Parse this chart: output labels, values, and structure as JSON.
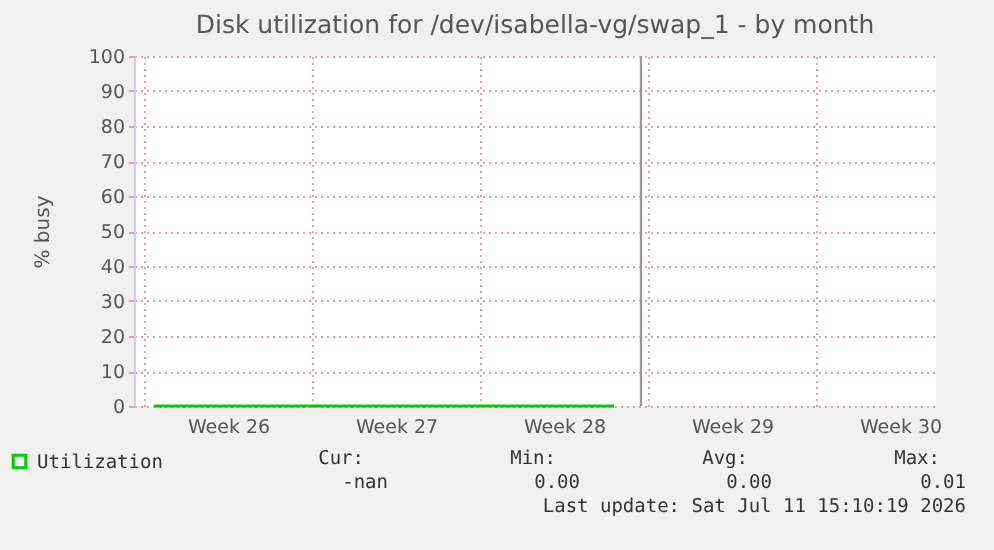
{
  "chart_data": {
    "type": "line",
    "title": "Disk utilization for /dev/isabella-vg/swap_1 - by month",
    "ylabel": "% busy",
    "xlim": [
      "2026-06-21T14:00",
      "2026-07-25"
    ],
    "xticks": [
      {
        "value": "2026-06-22",
        "label": null
      },
      {
        "value": "2026-06-25T12:00",
        "label": "Week 26"
      },
      {
        "value": "2026-06-29",
        "label": null
      },
      {
        "value": "2026-07-02T12:00",
        "label": "Week 27"
      },
      {
        "value": "2026-07-06",
        "label": null
      },
      {
        "value": "2026-07-09T12:00",
        "label": "Week 28"
      },
      {
        "value": "2026-07-13",
        "label": null
      },
      {
        "value": "2026-07-16T12:00",
        "label": "Week 29"
      },
      {
        "value": "2026-07-20",
        "label": null
      },
      {
        "value": "2026-07-23T12:00",
        "label": "Week 30"
      }
    ],
    "ylim": [
      0,
      100
    ],
    "yticks": [
      0,
      10,
      20,
      30,
      40,
      50,
      60,
      70,
      80,
      90,
      100
    ],
    "series": [
      {
        "name": "Utilization",
        "color": "#00cc00",
        "x": [
          "2026-06-22T10:00",
          "2026-06-27",
          "2026-07-02",
          "2026-07-07",
          "2026-07-11T14:00"
        ],
        "values": [
          0,
          0,
          0,
          0,
          0
        ]
      }
    ],
    "ref_lines": [
      {
        "axis": "x",
        "value": "2026-07-12T17:00",
        "color": "#999999"
      }
    ],
    "annotations": [
      "Cur:",
      "Min:",
      "Avg:",
      "Max:",
      "-nan",
      "0.00",
      "0.00",
      "0.01",
      "Last update: Sat Jul 11 15:10:19 2026"
    ],
    "grid": true,
    "legend": "bottom left"
  }
}
